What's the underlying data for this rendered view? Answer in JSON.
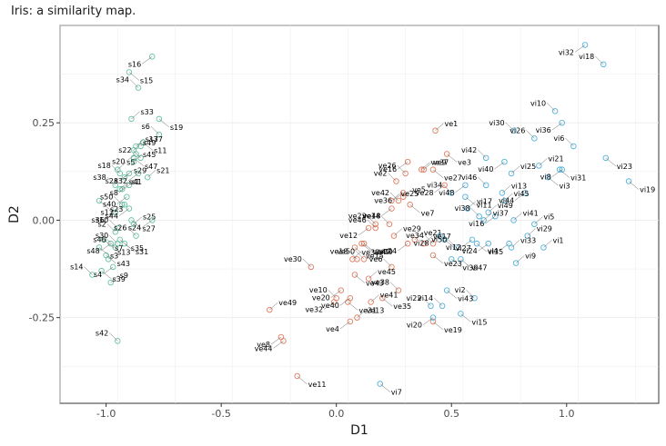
{
  "chart_data": {
    "type": "scatter",
    "title": "Iris: a similarity map.",
    "xlabel": "D1",
    "ylabel": "D2",
    "xlim": [
      -1.2,
      1.4
    ],
    "ylim": [
      -0.47,
      0.5
    ],
    "x_ticks": [
      -1.0,
      -0.5,
      0.0,
      0.5,
      1.0
    ],
    "x_tick_labels": [
      "-1.0",
      "-0.5",
      "0.0",
      "0.5",
      "1.0"
    ],
    "y_ticks": [
      -0.25,
      0.0,
      0.25
    ],
    "y_tick_labels": [
      "-0.25",
      "0.00",
      "0.25"
    ],
    "grid": true,
    "legend": "none",
    "series": [
      {
        "color": "#66c2a5",
        "points": [
          {
            "label": "s1",
            "x": -0.93,
            "y": 0.08
          },
          {
            "label": "s2",
            "x": -0.96,
            "y": -0.03
          },
          {
            "label": "s3",
            "x": -1.03,
            "y": -0.07
          },
          {
            "label": "s4",
            "x": -0.97,
            "y": -0.12
          },
          {
            "label": "s5",
            "x": -0.95,
            "y": 0.13
          },
          {
            "label": "s6",
            "x": -0.77,
            "y": 0.22
          },
          {
            "label": "s7",
            "x": -1.01,
            "y": -0.05
          },
          {
            "label": "s8",
            "x": -0.9,
            "y": 0.09
          },
          {
            "label": "s9",
            "x": -0.98,
            "y": -0.16
          },
          {
            "label": "s10",
            "x": -0.95,
            "y": -0.02
          },
          {
            "label": "s11",
            "x": -0.84,
            "y": 0.2
          },
          {
            "label": "s12",
            "x": -0.92,
            "y": 0.04
          },
          {
            "label": "s13",
            "x": -0.99,
            "y": -0.1
          },
          {
            "label": "s14",
            "x": -1.06,
            "y": -0.14
          },
          {
            "label": "s15",
            "x": -0.9,
            "y": 0.38
          },
          {
            "label": "s16",
            "x": -0.8,
            "y": 0.42
          },
          {
            "label": "s17",
            "x": -0.87,
            "y": 0.19
          },
          {
            "label": "s18",
            "x": -0.94,
            "y": 0.12
          },
          {
            "label": "s19",
            "x": -0.77,
            "y": 0.26
          },
          {
            "label": "s20",
            "x": -0.87,
            "y": 0.17
          },
          {
            "label": "s21",
            "x": -0.82,
            "y": 0.11
          },
          {
            "label": "s22",
            "x": -0.85,
            "y": 0.16
          },
          {
            "label": "s23",
            "x": -1.03,
            "y": 0.05
          },
          {
            "label": "s24",
            "x": -0.8,
            "y": 0.0
          },
          {
            "label": "s25",
            "x": -0.88,
            "y": -0.01
          },
          {
            "label": "s26",
            "x": -0.87,
            "y": -0.04
          },
          {
            "label": "s27",
            "x": -0.89,
            "y": 0.0
          },
          {
            "label": "s28",
            "x": -0.9,
            "y": 0.12
          },
          {
            "label": "s29",
            "x": -0.92,
            "y": 0.11
          },
          {
            "label": "s30",
            "x": -0.95,
            "y": -0.06
          },
          {
            "label": "s31",
            "x": -0.92,
            "y": -0.06
          },
          {
            "label": "s32",
            "x": -0.86,
            "y": 0.12
          },
          {
            "label": "s33",
            "x": -0.89,
            "y": 0.26
          },
          {
            "label": "s34",
            "x": -0.86,
            "y": 0.34
          },
          {
            "label": "s35",
            "x": -0.94,
            "y": -0.05
          },
          {
            "label": "s36",
            "x": -0.96,
            "y": 0.02
          },
          {
            "label": "s37",
            "x": -0.85,
            "y": 0.19
          },
          {
            "label": "s38",
            "x": -0.96,
            "y": 0.09
          },
          {
            "label": "s39",
            "x": -1.02,
            "y": -0.13
          },
          {
            "label": "s40",
            "x": -0.91,
            "y": 0.06
          },
          {
            "label": "s41",
            "x": -0.94,
            "y": 0.08
          },
          {
            "label": "s42",
            "x": -0.95,
            "y": -0.31
          },
          {
            "label": "s43",
            "x": -1.0,
            "y": -0.09
          },
          {
            "label": "s44",
            "x": -0.9,
            "y": 0.03
          },
          {
            "label": "s45",
            "x": -0.88,
            "y": 0.15
          },
          {
            "label": "s46",
            "x": -0.96,
            "y": -0.07
          },
          {
            "label": "s47",
            "x": -0.88,
            "y": 0.16
          },
          {
            "label": "s48",
            "x": -0.98,
            "y": -0.06
          },
          {
            "label": "s49",
            "x": -0.88,
            "y": 0.18
          },
          {
            "label": "s50",
            "x": -0.93,
            "y": 0.04
          }
        ]
      },
      {
        "color": "#e07b5e",
        "points": [
          {
            "label": "ve1",
            "x": 0.43,
            "y": 0.23
          },
          {
            "label": "ve2",
            "x": 0.26,
            "y": 0.1
          },
          {
            "label": "ve3",
            "x": 0.48,
            "y": 0.17
          },
          {
            "label": "ve4",
            "x": 0.06,
            "y": -0.26
          },
          {
            "label": "ve5",
            "x": 0.29,
            "y": 0.06
          },
          {
            "label": "ve6",
            "x": 0.24,
            "y": -0.12
          },
          {
            "label": "ve7",
            "x": 0.32,
            "y": 0.04
          },
          {
            "label": "ve8",
            "x": -0.24,
            "y": -0.3
          },
          {
            "label": "ve9",
            "x": 0.38,
            "y": 0.13
          },
          {
            "label": "ve10",
            "x": 0.0,
            "y": -0.2
          },
          {
            "label": "ve11",
            "x": -0.17,
            "y": -0.4
          },
          {
            "label": "ve12",
            "x": 0.14,
            "y": -0.02
          },
          {
            "label": "ve13",
            "x": 0.09,
            "y": -0.25
          },
          {
            "label": "ve14",
            "x": 0.23,
            "y": -0.01
          },
          {
            "label": "ve15",
            "x": 0.08,
            "y": -0.07
          },
          {
            "label": "ve16",
            "x": 0.31,
            "y": 0.15
          },
          {
            "label": "ve17",
            "x": 0.38,
            "y": -0.06
          },
          {
            "label": "ve18",
            "x": 0.09,
            "y": -0.1
          },
          {
            "label": "ve19",
            "x": 0.42,
            "y": -0.26
          },
          {
            "label": "ve20",
            "x": 0.02,
            "y": -0.18
          },
          {
            "label": "ve21",
            "x": 0.34,
            "y": -0.05
          },
          {
            "label": "ve22",
            "x": 0.17,
            "y": -0.01
          },
          {
            "label": "ve23",
            "x": 0.42,
            "y": -0.09
          },
          {
            "label": "ve24",
            "x": 0.31,
            "y": -0.06
          },
          {
            "label": "ve25",
            "x": 0.24,
            "y": 0.05
          },
          {
            "label": "ve26",
            "x": 0.3,
            "y": 0.12
          },
          {
            "label": "ve27",
            "x": 0.42,
            "y": 0.13
          },
          {
            "label": "ve28",
            "x": 0.47,
            "y": 0.09
          },
          {
            "label": "ve29",
            "x": 0.25,
            "y": -0.04
          },
          {
            "label": "ve30",
            "x": -0.11,
            "y": -0.12
          },
          {
            "label": "ve31",
            "x": 0.05,
            "y": -0.21
          },
          {
            "label": "ve32",
            "x": -0.01,
            "y": -0.21
          },
          {
            "label": "ve33",
            "x": 0.07,
            "y": -0.1
          },
          {
            "label": "ve34",
            "x": 0.42,
            "y": -0.06
          },
          {
            "label": "ve35",
            "x": 0.2,
            "y": -0.2
          },
          {
            "label": "ve36",
            "x": 0.29,
            "y": 0.07
          },
          {
            "label": "ve37",
            "x": 0.37,
            "y": 0.13
          },
          {
            "label": "ve38",
            "x": 0.27,
            "y": -0.18
          },
          {
            "label": "ve39",
            "x": 0.12,
            "y": -0.06
          },
          {
            "label": "ve40",
            "x": 0.06,
            "y": -0.2
          },
          {
            "label": "ve41",
            "x": 0.15,
            "y": -0.21
          },
          {
            "label": "ve42",
            "x": 0.27,
            "y": 0.05
          },
          {
            "label": "ve43",
            "x": 0.08,
            "y": -0.14
          },
          {
            "label": "ve44",
            "x": -0.23,
            "y": -0.31
          },
          {
            "label": "ve45",
            "x": 0.14,
            "y": -0.15
          },
          {
            "label": "ve46",
            "x": 0.17,
            "y": -0.02
          },
          {
            "label": "ve47",
            "x": 0.11,
            "y": -0.06
          },
          {
            "label": "ve48",
            "x": 0.24,
            "y": 0.03
          },
          {
            "label": "ve49",
            "x": -0.29,
            "y": -0.23
          },
          {
            "label": "ve50",
            "x": 0.12,
            "y": -0.1
          }
        ]
      },
      {
        "color": "#4fb0d9",
        "points": [
          {
            "label": "vi1",
            "x": 0.9,
            "y": -0.07
          },
          {
            "label": "vi2",
            "x": 0.6,
            "y": -0.2
          },
          {
            "label": "vi3",
            "x": 0.92,
            "y": 0.11
          },
          {
            "label": "vi4",
            "x": 0.75,
            "y": -0.06
          },
          {
            "label": "vi5",
            "x": 0.86,
            "y": -0.01
          },
          {
            "label": "vi6",
            "x": 1.03,
            "y": 0.19
          },
          {
            "label": "vi7",
            "x": 0.19,
            "y": -0.42
          },
          {
            "label": "vi8",
            "x": 0.98,
            "y": 0.13
          },
          {
            "label": "vi9",
            "x": 0.78,
            "y": -0.11
          },
          {
            "label": "vi10",
            "x": 0.95,
            "y": 0.28
          },
          {
            "label": "vi11",
            "x": 0.56,
            "y": 0.06
          },
          {
            "label": "vi12",
            "x": 0.59,
            "y": -0.05
          },
          {
            "label": "vi13",
            "x": 0.72,
            "y": 0.07
          },
          {
            "label": "vi14",
            "x": 0.46,
            "y": -0.22
          },
          {
            "label": "vi15",
            "x": 0.54,
            "y": -0.24
          },
          {
            "label": "vi16",
            "x": 0.69,
            "y": 0.01
          },
          {
            "label": "vi17",
            "x": 0.57,
            "y": 0.03
          },
          {
            "label": "vi18",
            "x": 1.16,
            "y": 0.4
          },
          {
            "label": "vi19",
            "x": 1.27,
            "y": 0.1
          },
          {
            "label": "vi20",
            "x": 0.42,
            "y": -0.25
          },
          {
            "label": "vi21",
            "x": 0.88,
            "y": 0.14
          },
          {
            "label": "vi22",
            "x": 0.41,
            "y": -0.22
          },
          {
            "label": "vi23",
            "x": 1.17,
            "y": 0.16
          },
          {
            "label": "vi24",
            "x": 0.66,
            "y": -0.06
          },
          {
            "label": "vi25",
            "x": 0.76,
            "y": 0.12
          },
          {
            "label": "vi26",
            "x": 0.86,
            "y": 0.21
          },
          {
            "label": "vi27",
            "x": 0.47,
            "y": -0.05
          },
          {
            "label": "vi28",
            "x": 0.45,
            "y": -0.04
          },
          {
            "label": "vi29",
            "x": 0.83,
            "y": -0.04
          },
          {
            "label": "vi30",
            "x": 0.77,
            "y": 0.23
          },
          {
            "label": "vi31",
            "x": 0.97,
            "y": 0.13
          },
          {
            "label": "vi32",
            "x": 1.08,
            "y": 0.45
          },
          {
            "label": "vi33",
            "x": 0.76,
            "y": -0.07
          },
          {
            "label": "vi34",
            "x": 0.5,
            "y": 0.07
          },
          {
            "label": "vi35",
            "x": 0.61,
            "y": -0.06
          },
          {
            "label": "vi36",
            "x": 0.98,
            "y": 0.25
          },
          {
            "label": "vi37",
            "x": 0.64,
            "y": 0.0
          },
          {
            "label": "vi38",
            "x": 0.62,
            "y": 0.01
          },
          {
            "label": "vi39",
            "x": 0.5,
            "y": -0.1
          },
          {
            "label": "vi40",
            "x": 0.73,
            "y": 0.15
          },
          {
            "label": "vi41",
            "x": 0.77,
            "y": 0.0
          },
          {
            "label": "vi42",
            "x": 0.65,
            "y": 0.16
          },
          {
            "label": "vi43",
            "x": 0.48,
            "y": -0.18
          },
          {
            "label": "vi44",
            "x": 0.82,
            "y": 0.07
          },
          {
            "label": "vi45",
            "x": 0.73,
            "y": 0.05
          },
          {
            "label": "vi46",
            "x": 0.65,
            "y": 0.09
          },
          {
            "label": "vi47",
            "x": 0.54,
            "y": -0.1
          },
          {
            "label": "vi48",
            "x": 0.56,
            "y": 0.09
          },
          {
            "label": "vi49",
            "x": 0.66,
            "y": 0.02
          },
          {
            "label": "vi50",
            "x": 0.52,
            "y": -0.07
          }
        ]
      }
    ]
  }
}
